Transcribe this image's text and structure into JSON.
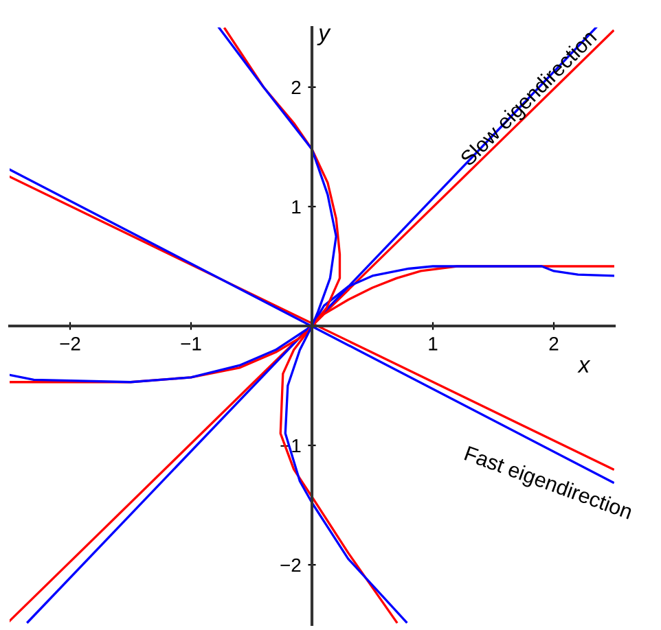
{
  "chart_data": {
    "type": "line",
    "xlabel": "x",
    "ylabel": "y",
    "xlim": [
      -2.5,
      2.5
    ],
    "ylim": [
      -2.5,
      2.5
    ],
    "xticks": [
      {
        "value": -2,
        "label": "−2"
      },
      {
        "value": -1,
        "label": "−1"
      },
      1,
      2
    ],
    "yticks": [
      {
        "value": -2,
        "label": "−2"
      },
      {
        "value": -1,
        "label": "−1"
      },
      1,
      2
    ],
    "grid": false,
    "marker": "none",
    "line_style": "solid",
    "series": [
      {
        "color": "#ff0000",
        "x": [
          -2.5,
          2.49
        ],
        "values": [
          -2.47,
          2.47
        ]
      },
      {
        "color": "#0000ff",
        "x": [
          -2.35,
          2.35
        ],
        "values": [
          -2.48,
          2.5
        ]
      },
      {
        "color": "#ff0000",
        "x": [
          -2.5,
          2.49
        ],
        "values": [
          1.25,
          -1.2
        ]
      },
      {
        "color": "#0000ff",
        "x": [
          -2.5,
          2.49
        ],
        "values": [
          1.31,
          -1.31
        ]
      },
      {
        "color": "#ff0000",
        "x": [
          -2.5,
          -1.5,
          -1,
          -0.6,
          -0.3,
          -0.1,
          0,
          0.1,
          0.3,
          0.5,
          0.7,
          0.9,
          1.2,
          2.5
        ],
        "values": [
          -0.47,
          -0.47,
          -0.43,
          -0.35,
          -0.22,
          -0.1,
          0,
          0.1,
          0.22,
          0.32,
          0.4,
          0.46,
          0.5,
          0.5
        ]
      },
      {
        "color": "#0000ff",
        "x": [
          -2.5,
          -2.3,
          -1.5,
          -1,
          -0.6,
          -0.3,
          0,
          0.1,
          0.3,
          0.5,
          0.8,
          1.0,
          1.9,
          2.0,
          2.2,
          2.5
        ],
        "values": [
          -0.41,
          -0.45,
          -0.47,
          -0.43,
          -0.33,
          -0.2,
          0,
          0.17,
          0.33,
          0.42,
          0.48,
          0.5,
          0.5,
          0.46,
          0.43,
          0.42
        ]
      },
      {
        "color": "#ff0000",
        "x": [
          -0.72,
          -0.4,
          -0.15,
          0,
          0.13,
          0.2,
          0.23,
          0.23,
          0.12,
          0,
          -0.15,
          -0.24,
          -0.26,
          -0.15,
          0,
          0.3,
          0.7
        ],
        "values": [
          2.49,
          2.0,
          1.7,
          1.48,
          1.2,
          0.9,
          0.6,
          0.4,
          0.15,
          0,
          -0.2,
          -0.4,
          -0.9,
          -1.2,
          -1.43,
          -1.9,
          -2.48
        ]
      },
      {
        "color": "#0000ff",
        "x": [
          -0.77,
          -0.4,
          0,
          0.13,
          0.2,
          0.15,
          0.05,
          0,
          -0.1,
          -0.2,
          -0.22,
          -0.1,
          0,
          0.3,
          0.78
        ],
        "values": [
          2.5,
          2.0,
          1.48,
          1.1,
          0.75,
          0.4,
          0.12,
          0,
          -0.2,
          -0.5,
          -0.9,
          -1.3,
          -1.48,
          -1.95,
          -2.48
        ]
      }
    ],
    "annotations": [
      "Slow eigendirection",
      "Fast eigendirection"
    ]
  }
}
